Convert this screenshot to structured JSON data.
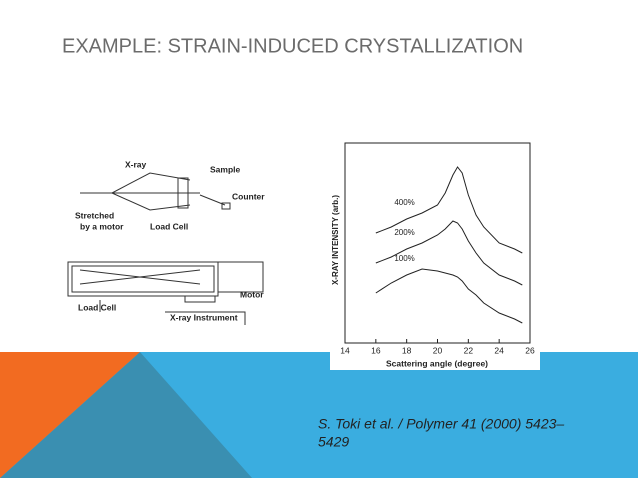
{
  "title": "EXAMPLE: STRAIN-INDUCED CRYSTALLIZATION",
  "diagram": {
    "labels": [
      "X-ray",
      "Sample",
      "Counter",
      "Stretched",
      "by a motor",
      "Load Cell",
      "Motor",
      "Load Cell",
      "X-ray Instrument"
    ]
  },
  "chart_data": {
    "type": "line",
    "x_label": "Scattering angle (degree)",
    "y_label": "X-RAY INTENSITY (arb.)",
    "x": [
      16,
      17,
      18,
      19,
      20,
      20.5,
      21,
      21.3,
      21.6,
      22,
      22.5,
      23,
      24,
      25,
      25.5
    ],
    "series": [
      {
        "name": "400%",
        "color": "#222222",
        "values": [
          55,
          58,
          62,
          65,
          69,
          75,
          84,
          88,
          85,
          74,
          64,
          58,
          50,
          47,
          45
        ]
      },
      {
        "name": "200%",
        "color": "#222222",
        "values": [
          40,
          43,
          47,
          50,
          54,
          57,
          61,
          60,
          57,
          51,
          45,
          40,
          34,
          31,
          29
        ]
      },
      {
        "name": "100%",
        "color": "#222222",
        "values": [
          25,
          30,
          34,
          37,
          36,
          35,
          34,
          33,
          31,
          27,
          24,
          20,
          15,
          12,
          10
        ]
      }
    ],
    "xlim": [
      14,
      26
    ],
    "xticks": [
      14,
      16,
      18,
      20,
      22,
      24,
      26
    ],
    "ylim": [
      0,
      100
    ]
  },
  "citation": [
    "S. Toki et al. / Polymer 41 (2000) 5423–",
    "5429"
  ]
}
